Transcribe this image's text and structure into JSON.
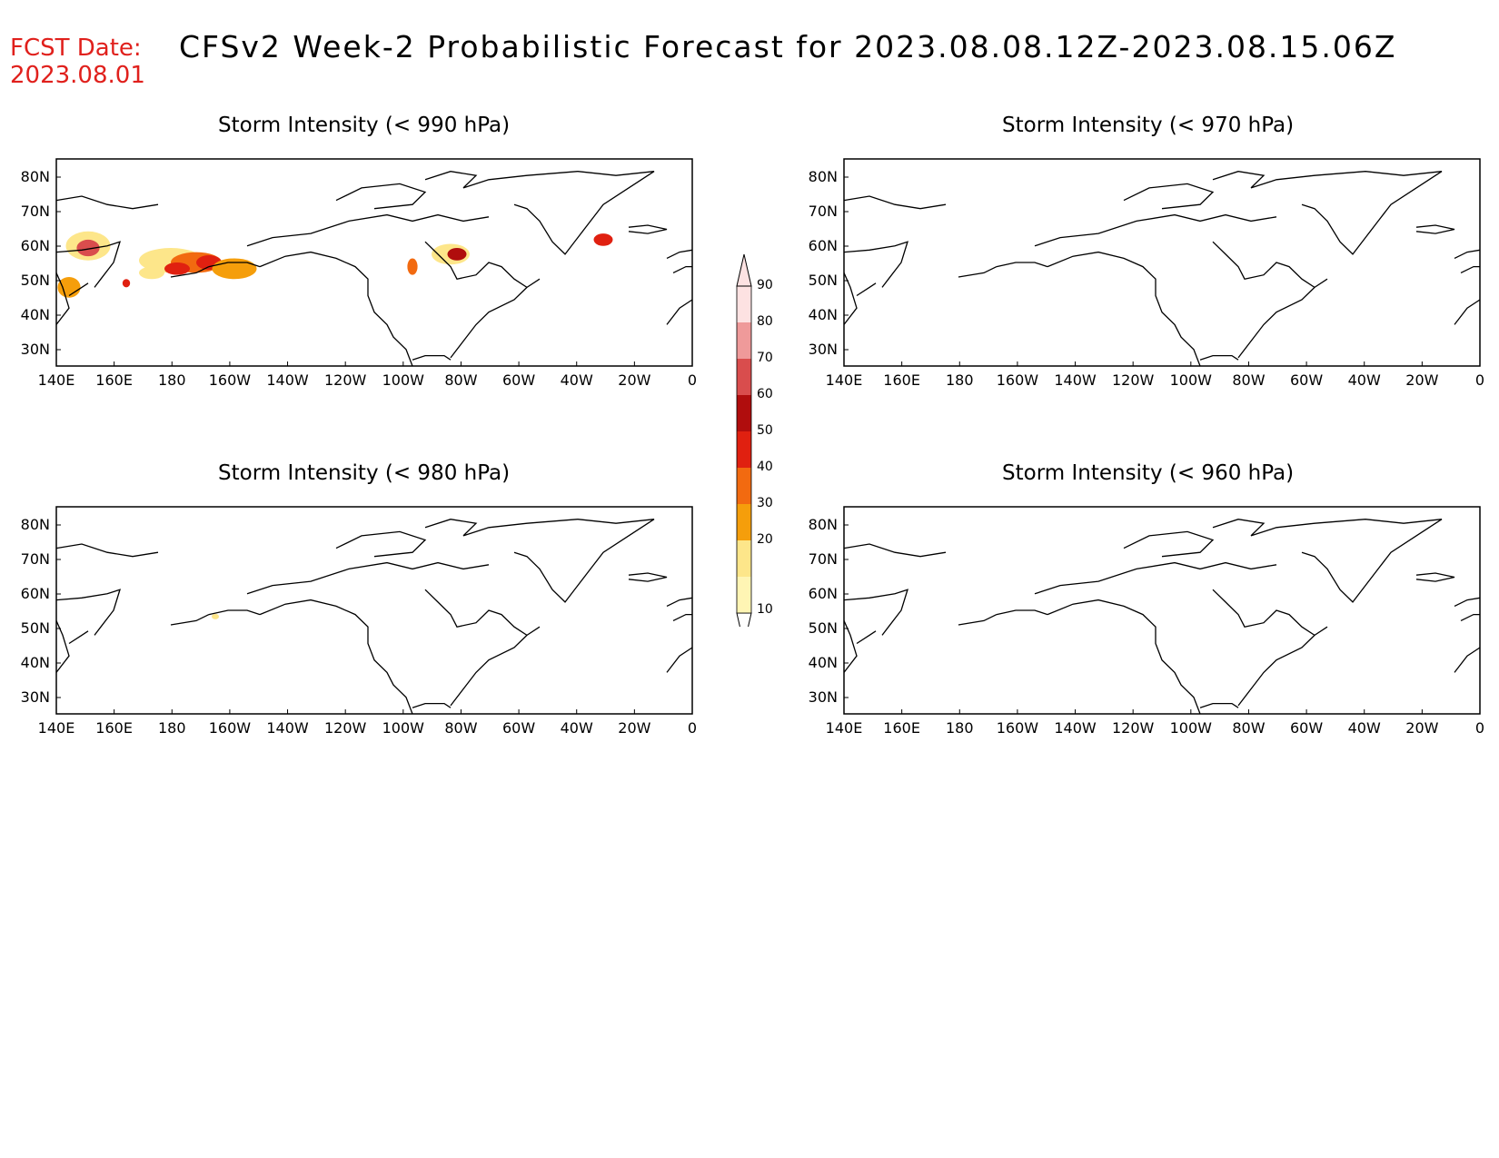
{
  "header": {
    "fcst_label": "FCST Date:",
    "fcst_date": "2023.08.01",
    "title": "CFSv2 Week-2 Probabilistic Forecast for 2023.08.08.12Z-2023.08.15.06Z",
    "fcst_color": "#e0201c"
  },
  "panels": [
    {
      "title": "Storm Intensity (< 990 hPa)",
      "has_shading": true
    },
    {
      "title": "Storm Intensity (< 970 hPa)",
      "has_shading": false
    },
    {
      "title": "Storm Intensity (< 980 hPa)",
      "has_shading": "trace"
    },
    {
      "title": "Storm Intensity (< 960 hPa)",
      "has_shading": false
    }
  ],
  "map": {
    "lat_labels": [
      "80N",
      "70N",
      "60N",
      "50N",
      "40N",
      "30N"
    ],
    "lon_labels": [
      "140E",
      "160E",
      "180",
      "160W",
      "140W",
      "120W",
      "100W",
      "80W",
      "60W",
      "40W",
      "20W",
      "0"
    ]
  },
  "colorbar": {
    "levels": [
      "10",
      "20",
      "30",
      "40",
      "50",
      "60",
      "70",
      "80",
      "90"
    ],
    "colors": [
      "#fff5b4",
      "#fde68a",
      "#f59e0b",
      "#f26a10",
      "#e02010",
      "#b00d0d",
      "#d94d4d",
      "#ef9a9a",
      "#fde2e2"
    ]
  }
}
